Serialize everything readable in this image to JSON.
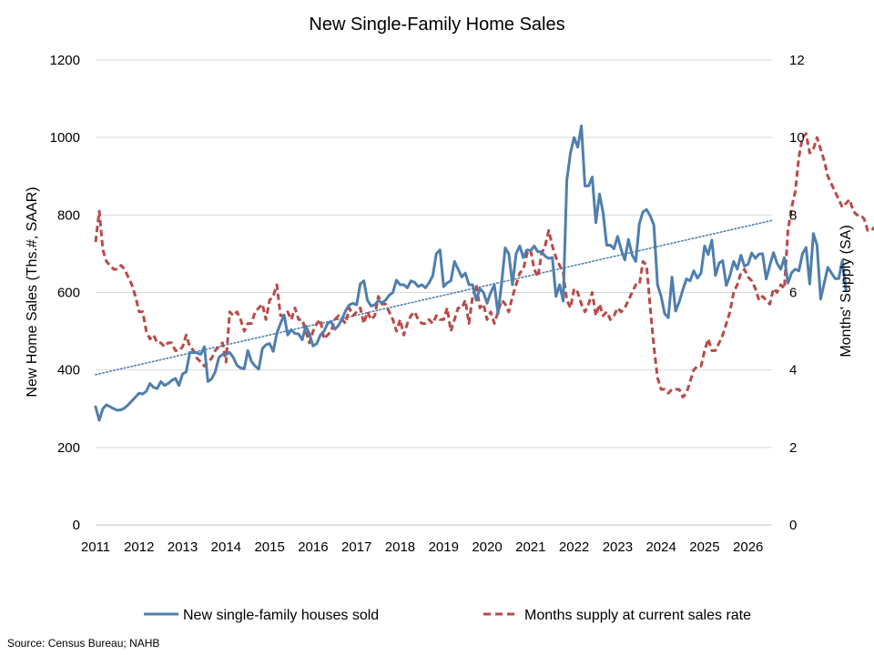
{
  "chart_data": {
    "type": "line",
    "title": "New Single-Family Home Sales",
    "ylabel_left": "New Home Sales (Ths.#, SAAR)",
    "ylabel_right": "Months' Supply (SA)",
    "source": "Source: Census Bureau; NAHB",
    "x_ticks": [
      "2011",
      "2012",
      "2013",
      "2014",
      "2015",
      "2016",
      "2017",
      "2018",
      "2019",
      "2020",
      "2021",
      "2022",
      "2023",
      "2024",
      "2025",
      "2026"
    ],
    "x_start_year": 2011,
    "x_range": [
      2011.0,
      2026.55
    ],
    "ylim_left": [
      0,
      1200
    ],
    "yticks_left": [
      0,
      200,
      400,
      600,
      800,
      1000,
      1200
    ],
    "ylim_right": [
      0,
      12
    ],
    "yticks_right": [
      0,
      2,
      4,
      6,
      8,
      10,
      12
    ],
    "gridlines": true,
    "legend_position": "bottom",
    "series": [
      {
        "name": "New single-family houses sold",
        "axis": "left",
        "color": "#4F7FAD",
        "style": "solid",
        "monthly_values": [
          305,
          270,
          300,
          310,
          305,
          300,
          296,
          297,
          302,
          310,
          320,
          330,
          340,
          338,
          345,
          365,
          355,
          352,
          370,
          360,
          365,
          373,
          378,
          360,
          390,
          395,
          445,
          445,
          444,
          440,
          460,
          370,
          377,
          395,
          432,
          440,
          440,
          445,
          432,
          412,
          405,
          403,
          450,
          422,
          410,
          402,
          455,
          465,
          468,
          448,
          495,
          520,
          542,
          490,
          504,
          494,
          493,
          478,
          514,
          492,
          462,
          468,
          490,
          500,
          520,
          525,
          505,
          515,
          532,
          553,
          568,
          572,
          568,
          622,
          630,
          580,
          565,
          568,
          579,
          573,
          580,
          593,
          600,
          632,
          620,
          620,
          612,
          630,
          626,
          615,
          620,
          612,
          625,
          643,
          700,
          710,
          615,
          625,
          630,
          680,
          660,
          640,
          650,
          620,
          620,
          580,
          610,
          600,
          572,
          600,
          620,
          545,
          625,
          715,
          700,
          620,
          700,
          720,
          690,
          710,
          708,
          720,
          705,
          705,
          694,
          688,
          690,
          590,
          620,
          578,
          890,
          960,
          1000,
          975,
          1030,
          875,
          875,
          898,
          780,
          854,
          806,
          722,
          722,
          713,
          745,
          710,
          684,
          737,
          697,
          680,
          778,
          808,
          814,
          798,
          774,
          620,
          590,
          545,
          535,
          640,
          552,
          576,
          607,
          635,
          630,
          656,
          637,
          650,
          720,
          698,
          735,
          644,
          676,
          682,
          618,
          644,
          680,
          660,
          696,
          668,
          673,
          702,
          688,
          699,
          700,
          635,
          670,
          703,
          675,
          660,
          690,
          624,
          651,
          660,
          656,
          700,
          716,
          622,
          752,
          722,
          583,
          624,
          665,
          650,
          636,
          636,
          682,
          607
        ]
      },
      {
        "name": "Months supply at current sales rate",
        "axis": "right",
        "color": "#B94A48",
        "style": "dashed",
        "monthly_values": [
          7.3,
          8.1,
          7.1,
          6.8,
          6.7,
          6.6,
          6.6,
          6.7,
          6.6,
          6.4,
          6.2,
          5.9,
          5.5,
          5.5,
          5.0,
          4.8,
          4.9,
          4.7,
          4.7,
          4.6,
          4.7,
          4.7,
          4.5,
          4.5,
          4.6,
          4.9,
          4.6,
          4.5,
          4.3,
          4.2,
          4.1,
          4.2,
          4.3,
          4.5,
          4.6,
          4.7,
          4.2,
          5.5,
          5.4,
          5.5,
          5.3,
          5.0,
          5.2,
          5.2,
          5.5,
          5.6,
          5.7,
          5.3,
          5.8,
          5.9,
          6.2,
          5.4,
          5.4,
          5.5,
          5.3,
          5.6,
          5.3,
          5.3,
          5.0,
          4.7,
          5.0,
          5.2,
          5.3,
          4.8,
          4.9,
          5.0,
          5.3,
          5.4,
          5.3,
          5.2,
          5.6,
          5.4,
          5.5,
          5.6,
          5.2,
          5.5,
          5.3,
          5.4,
          5.9,
          5.7,
          5.7,
          5.5,
          5.3,
          5.0,
          5.3,
          4.9,
          5.2,
          5.4,
          5.5,
          5.3,
          5.2,
          5.2,
          5.3,
          5.2,
          5.4,
          5.3,
          5.3,
          5.6,
          5.0,
          5.3,
          5.6,
          5.6,
          5.8,
          5.2,
          5.9,
          6.2,
          5.6,
          5.7,
          5.3,
          5.5,
          5.2,
          5.5,
          5.8,
          5.7,
          5.5,
          5.9,
          6.2,
          6.5,
          6.6,
          7.0,
          7.1,
          6.6,
          6.4,
          7.0,
          7.2,
          7.6,
          7.2,
          6.9,
          6.7,
          6.5,
          5.8,
          5.6,
          6.1,
          6.0,
          5.7,
          5.5,
          5.7,
          6.0,
          5.4,
          5.7,
          5.4,
          5.5,
          5.3,
          5.4,
          5.6,
          5.5,
          5.6,
          5.8,
          6.0,
          6.2,
          6.2,
          6.8,
          6.7,
          5.6,
          4.6,
          3.8,
          3.5,
          3.5,
          3.4,
          3.5,
          3.5,
          3.5,
          3.3,
          3.4,
          3.7,
          4.0,
          4.1,
          4.1,
          4.5,
          4.8,
          4.5,
          4.5,
          4.7,
          4.9,
          5.2,
          5.5,
          6.0,
          6.2,
          6.5,
          6.6,
          6.4,
          6.3,
          6.1,
          5.8,
          5.9,
          5.8,
          5.7,
          6.1,
          6.0,
          6.2,
          6.1,
          7.6,
          8.2,
          8.6,
          9.5,
          10.0,
          10.1,
          9.6,
          9.7,
          10.0,
          9.7,
          9.4,
          9.0,
          8.8,
          8.6,
          8.4,
          8.2,
          8.3,
          8.4,
          8.1,
          8.0,
          8.0,
          7.9,
          7.6,
          7.6,
          7.7,
          7.5,
          7.2,
          6.8,
          7.3,
          7.4,
          7.6,
          8.1,
          7.8,
          8.0,
          8.3,
          8.3,
          8.9,
          8.4,
          8.3,
          8.4,
          8.5,
          8.2,
          8.0,
          8.1,
          7.8,
          8.2,
          8.3,
          8.2,
          7.8,
          8.4,
          8.3,
          8.6,
          9.1,
          8.8,
          9.1,
          8.8,
          9.0,
          9.3,
          9.5,
          9.2,
          9.0,
          9.2,
          8.7,
          8.8,
          8.4,
          8.7,
          9.7,
          9.0,
          9.1,
          8.7,
          8.1,
          8.7,
          9.1,
          8.1,
          8.3,
          9.9,
          9.4,
          9.1,
          8.6,
          8.8,
          9.1,
          9.3,
          9.3,
          9.4,
          9.3
        ]
      },
      {
        "name": "",
        "axis": "left",
        "type": "linear-trend",
        "color": "#4F7FAD",
        "style": "dotted",
        "points": [
          {
            "x": 2011.0,
            "y": 388
          },
          {
            "x": 2026.55,
            "y": 786
          }
        ]
      }
    ]
  }
}
